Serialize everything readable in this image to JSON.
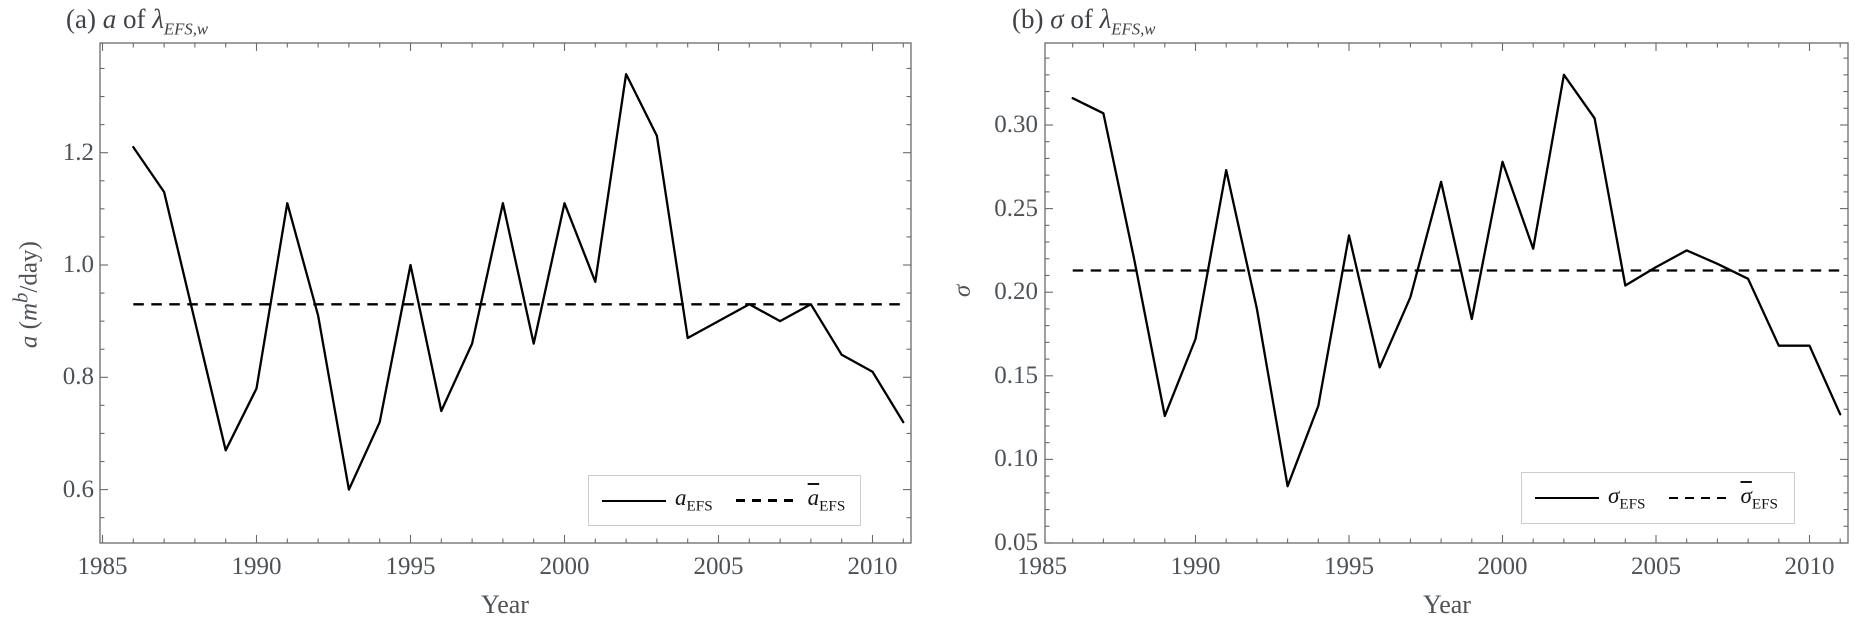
{
  "figure": {
    "panels": [
      {
        "title": {
          "prefix": "(a) ",
          "var": "a",
          "mid": " of ",
          "lambda": "λ",
          "lambda_sub": "EFS,w"
        },
        "y_axis_label": {
          "var": "a",
          "open": " (",
          "m": "m",
          "sup": "b",
          "close": "/day)"
        },
        "x_axis_label": "Year",
        "legend": {
          "solid": {
            "main": "a",
            "sub": "EFS"
          },
          "dashed": {
            "main": "a",
            "sub": "EFS"
          }
        }
      },
      {
        "title": {
          "prefix": "(b) ",
          "var": "σ",
          "mid": " of ",
          "lambda": "λ",
          "lambda_sub": "EFS,w"
        },
        "y_axis_label": {
          "var": "σ"
        },
        "x_axis_label": "Year",
        "legend": {
          "solid": {
            "main": "σ",
            "sub": "EFS"
          },
          "dashed": {
            "main": "σ",
            "sub": "EFS"
          }
        }
      }
    ],
    "colors": {
      "data_line": "#000000",
      "frame": "#6a6a6a",
      "tick_text": "#4d5257",
      "legend_border": "#c9ced3"
    }
  },
  "chart_data": [
    {
      "type": "line",
      "title": "(a) a of λ_EFS,w",
      "xlabel": "Year",
      "ylabel": "a (m^b/day)",
      "x": [
        1986,
        1987,
        1988,
        1989,
        1990,
        1991,
        1992,
        1993,
        1994,
        1995,
        1996,
        1997,
        1998,
        1999,
        2000,
        2001,
        2002,
        2003,
        2004,
        2005,
        2006,
        2007,
        2008,
        2009,
        2010,
        2011
      ],
      "series": [
        {
          "name": "a_EFS",
          "style": "solid",
          "values": [
            1.21,
            1.13,
            0.9,
            0.67,
            0.78,
            1.11,
            0.91,
            0.6,
            0.72,
            1.0,
            0.74,
            0.86,
            1.11,
            0.86,
            1.11,
            0.97,
            1.34,
            1.23,
            0.87,
            0.9,
            0.93,
            0.9,
            0.93,
            0.84,
            0.81,
            0.72
          ]
        },
        {
          "name": "ā_EFS",
          "style": "dashed",
          "type": "constant-mean",
          "value": 0.93
        }
      ],
      "xlim": [
        1985,
        2011.3
      ],
      "ylim": [
        0.505,
        1.395
      ],
      "xticks": [
        1985,
        1990,
        1995,
        2000,
        2005,
        2010
      ],
      "xtick_labels": [
        "1985",
        "1990",
        "1995",
        "2000",
        "2005",
        "2010"
      ],
      "yticks": [
        0.6,
        0.8,
        1.0,
        1.2
      ],
      "ytick_labels": [
        "0.6",
        "0.8",
        "1.0",
        "1.2"
      ],
      "grid": false,
      "legend_position": "lower right",
      "legend_entries": [
        "a_EFS",
        "ā_EFS"
      ]
    },
    {
      "type": "line",
      "title": "(b) σ of λ_EFS,w",
      "xlabel": "Year",
      "ylabel": "σ",
      "x": [
        1986,
        1987,
        1988,
        1989,
        1990,
        1991,
        1992,
        1993,
        1994,
        1995,
        1996,
        1997,
        1998,
        1999,
        2000,
        2001,
        2002,
        2003,
        2004,
        2005,
        2006,
        2007,
        2008,
        2009,
        2010,
        2011
      ],
      "series": [
        {
          "name": "σ_EFS",
          "style": "solid",
          "values": [
            0.316,
            0.307,
            0.22,
            0.126,
            0.172,
            0.273,
            0.19,
            0.084,
            0.132,
            0.234,
            0.155,
            0.197,
            0.266,
            0.184,
            0.278,
            0.226,
            0.33,
            0.304,
            0.204,
            0.215,
            0.225,
            0.217,
            0.208,
            0.168,
            0.168,
            0.127
          ]
        },
        {
          "name": "σ̄_EFS",
          "style": "dashed",
          "type": "constant-mean",
          "value": 0.213
        }
      ],
      "xlim": [
        1985,
        2011.3
      ],
      "ylim": [
        0.05,
        0.349
      ],
      "xticks": [
        1985,
        1990,
        1995,
        2000,
        2005,
        2010
      ],
      "xtick_labels": [
        "1985",
        "1990",
        "1995",
        "2000",
        "2005",
        "2010"
      ],
      "yticks": [
        0.05,
        0.1,
        0.15,
        0.2,
        0.25,
        0.3
      ],
      "ytick_labels": [
        "0.05",
        "0.10",
        "0.15",
        "0.20",
        "0.25",
        "0.30"
      ],
      "grid": false,
      "legend_position": "lower right",
      "legend_entries": [
        "σ_EFS",
        "σ̄_EFS"
      ]
    }
  ]
}
